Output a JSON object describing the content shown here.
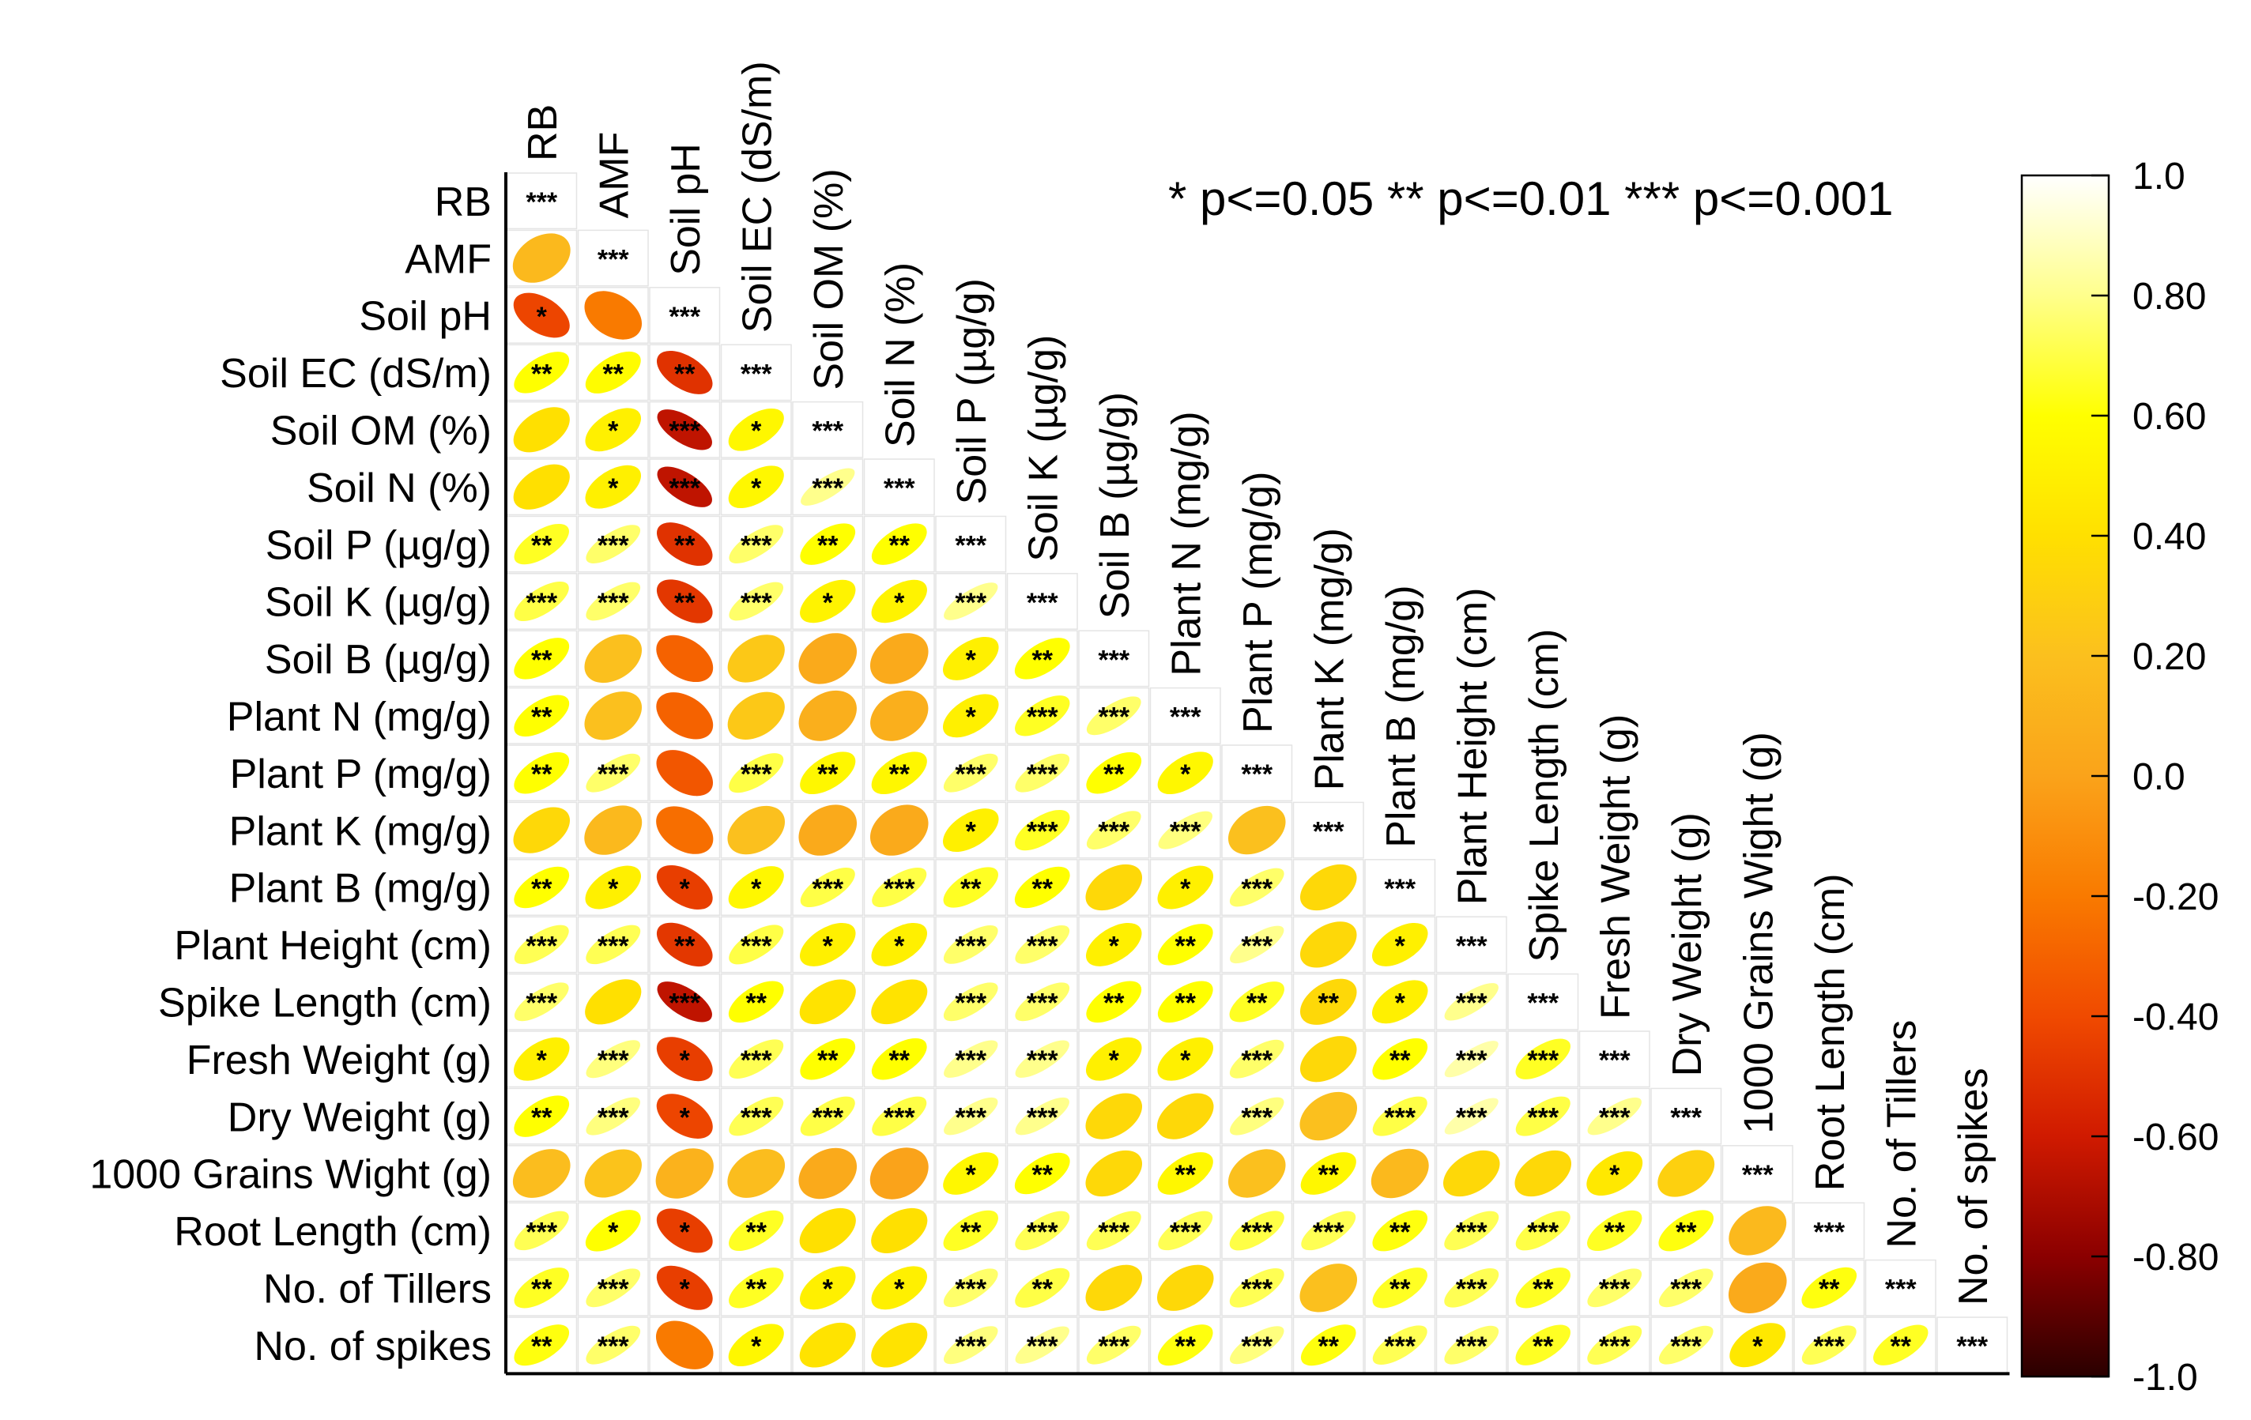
{
  "chart_data": {
    "type": "heatmap",
    "subtype": "correlation-ellipse-lower-triangle",
    "variables": [
      "RB",
      "AMF",
      "Soil pH",
      "Soil EC (dS/m)",
      "Soil OM (%)",
      "Soil N (%)",
      "Soil P (µg/g)",
      "Soil K (µg/g)",
      "Soil B (µg/g)",
      "Plant N (mg/g)",
      "Plant P (mg/g)",
      "Plant K (mg/g)",
      "Plant B (mg/g)",
      "Plant Height (cm)",
      "Spike Length (cm)",
      "Fresh Weight (g)",
      "Dry Weight (g)",
      "1000 Grains Wight (g)",
      "Root Length (cm)",
      "No. of Tillers",
      "No. of spikes"
    ],
    "correlations": [
      [
        1.0
      ],
      [
        0.15,
        1.0
      ],
      [
        -0.42,
        -0.2,
        1.0
      ],
      [
        0.6,
        0.58,
        -0.5,
        1.0
      ],
      [
        0.4,
        0.5,
        -0.65,
        0.55,
        1.0
      ],
      [
        0.4,
        0.5,
        -0.65,
        0.55,
        0.8,
        1.0
      ],
      [
        0.65,
        0.75,
        -0.5,
        0.75,
        0.6,
        0.6,
        1.0
      ],
      [
        0.7,
        0.75,
        -0.48,
        0.75,
        0.52,
        0.52,
        0.8,
        1.0
      ],
      [
        0.6,
        0.2,
        -0.3,
        0.25,
        0.05,
        0.05,
        0.5,
        0.6,
        1.0
      ],
      [
        0.6,
        0.2,
        -0.3,
        0.25,
        0.08,
        0.08,
        0.5,
        0.65,
        0.75,
        1.0
      ],
      [
        0.6,
        0.75,
        -0.35,
        0.7,
        0.55,
        0.55,
        0.75,
        0.75,
        0.6,
        0.55,
        1.0
      ],
      [
        0.35,
        0.15,
        -0.25,
        0.2,
        0.05,
        0.05,
        0.5,
        0.65,
        0.75,
        0.78,
        0.2,
        1.0
      ],
      [
        0.6,
        0.5,
        -0.45,
        0.55,
        0.7,
        0.7,
        0.65,
        0.6,
        0.35,
        0.5,
        0.75,
        0.35,
        1.0
      ],
      [
        0.72,
        0.72,
        -0.48,
        0.7,
        0.5,
        0.5,
        0.75,
        0.75,
        0.5,
        0.6,
        0.8,
        0.35,
        0.5,
        1.0
      ],
      [
        0.75,
        0.4,
        -0.65,
        0.6,
        0.42,
        0.42,
        0.75,
        0.75,
        0.6,
        0.6,
        0.65,
        0.35,
        0.5,
        0.8,
        1.0
      ],
      [
        0.5,
        0.78,
        -0.45,
        0.72,
        0.6,
        0.6,
        0.8,
        0.8,
        0.5,
        0.5,
        0.75,
        0.35,
        0.6,
        0.85,
        0.65,
        1.0
      ],
      [
        0.6,
        0.78,
        -0.42,
        0.72,
        0.7,
        0.7,
        0.8,
        0.8,
        0.35,
        0.35,
        0.78,
        0.2,
        0.7,
        0.85,
        0.7,
        0.8,
        1.0
      ],
      [
        0.18,
        0.22,
        0.1,
        0.18,
        0.05,
        0.0,
        0.55,
        0.6,
        0.35,
        0.55,
        0.2,
        0.55,
        0.15,
        0.35,
        0.35,
        0.45,
        0.3,
        1.0
      ],
      [
        0.72,
        0.6,
        -0.45,
        0.65,
        0.4,
        0.4,
        0.65,
        0.72,
        0.72,
        0.72,
        0.7,
        0.72,
        0.62,
        0.72,
        0.7,
        0.65,
        0.62,
        0.15,
        1.0
      ],
      [
        0.65,
        0.75,
        -0.45,
        0.65,
        0.5,
        0.5,
        0.75,
        0.7,
        0.35,
        0.35,
        0.72,
        0.2,
        0.65,
        0.72,
        0.65,
        0.75,
        0.75,
        0.05,
        0.62,
        1.0
      ],
      [
        0.62,
        0.75,
        -0.2,
        0.55,
        0.42,
        0.42,
        0.78,
        0.8,
        0.75,
        0.62,
        0.78,
        0.62,
        0.72,
        0.75,
        0.65,
        0.72,
        0.75,
        0.45,
        0.72,
        0.65,
        1.0
      ]
    ],
    "significance": [
      [
        "***"
      ],
      [
        "",
        "***"
      ],
      [
        "*",
        "",
        "***"
      ],
      [
        "**",
        "**",
        "**",
        "***"
      ],
      [
        "",
        "*",
        "***",
        "*",
        "***"
      ],
      [
        "",
        "*",
        "***",
        "*",
        "***",
        "***"
      ],
      [
        "**",
        "***",
        "**",
        "***",
        "**",
        "**",
        "***"
      ],
      [
        "***",
        "***",
        "**",
        "***",
        "*",
        "*",
        "***",
        "***"
      ],
      [
        "**",
        "",
        "",
        "",
        "",
        "",
        "*",
        "**",
        "***"
      ],
      [
        "**",
        "",
        "",
        "",
        "",
        "",
        "*",
        "***",
        "***",
        "***"
      ],
      [
        "**",
        "***",
        "",
        "***",
        "**",
        "**",
        "***",
        "***",
        "**",
        "*",
        "***"
      ],
      [
        "",
        "",
        "",
        "",
        "",
        "",
        "*",
        "***",
        "***",
        "***",
        "",
        "***"
      ],
      [
        "**",
        "*",
        "*",
        "*",
        "***",
        "***",
        "**",
        "**",
        "",
        "*",
        "***",
        "",
        "***"
      ],
      [
        "***",
        "***",
        "**",
        "***",
        "*",
        "*",
        "***",
        "***",
        "*",
        "**",
        "***",
        "",
        "*",
        "***"
      ],
      [
        "***",
        "",
        "***",
        "**",
        "",
        "",
        "***",
        "***",
        "**",
        "**",
        "**",
        "**",
        "*",
        "***",
        "***"
      ],
      [
        "*",
        "***",
        "*",
        "***",
        "**",
        "**",
        "***",
        "***",
        "*",
        "*",
        "***",
        "",
        "**",
        "***",
        "***",
        "***"
      ],
      [
        "**",
        "***",
        "*",
        "***",
        "***",
        "***",
        "***",
        "***",
        "",
        "",
        "***",
        "",
        "***",
        "***",
        "***",
        "***",
        "***"
      ],
      [
        "",
        "",
        "",
        "",
        "",
        "",
        "*",
        "**",
        "",
        "**",
        "",
        "**",
        "",
        "",
        "",
        "*",
        "",
        "***"
      ],
      [
        "***",
        "*",
        "*",
        "**",
        "",
        "",
        "**",
        "***",
        "***",
        "***",
        "***",
        "***",
        "**",
        "***",
        "***",
        "**",
        "**",
        "",
        "***"
      ],
      [
        "**",
        "***",
        "*",
        "**",
        "*",
        "*",
        "***",
        "**",
        "",
        "",
        "***",
        "",
        "**",
        "***",
        "**",
        "***",
        "***",
        "",
        "**",
        "***"
      ],
      [
        "**",
        "***",
        "",
        "*",
        "",
        "",
        "***",
        "***",
        "***",
        "**",
        "***",
        "**",
        "***",
        "***",
        "**",
        "***",
        "***",
        "*",
        "***",
        "**",
        "***"
      ]
    ],
    "legend": {
      "text": "*  p<=0.05   **  p<=0.01   ***  p<=0.001",
      "items": [
        "* p<=0.05",
        "** p<=0.01",
        "*** p<=0.001"
      ]
    },
    "colorbar": {
      "range": [
        -1.0,
        1.0
      ],
      "ticks": [
        "1.0",
        "0.80",
        "0.60",
        "0.40",
        "0.20",
        "0.0",
        "-0.20",
        "-0.40",
        "-0.60",
        "-0.80",
        "-1.0"
      ],
      "colors": [
        "#2a0000",
        "#8b0000",
        "#d01a00",
        "#f04a00",
        "#f97a00",
        "#faa31a",
        "#fbc01e",
        "#ffe000",
        "#ffff00",
        "#ffff8c",
        "#ffffff"
      ]
    }
  }
}
